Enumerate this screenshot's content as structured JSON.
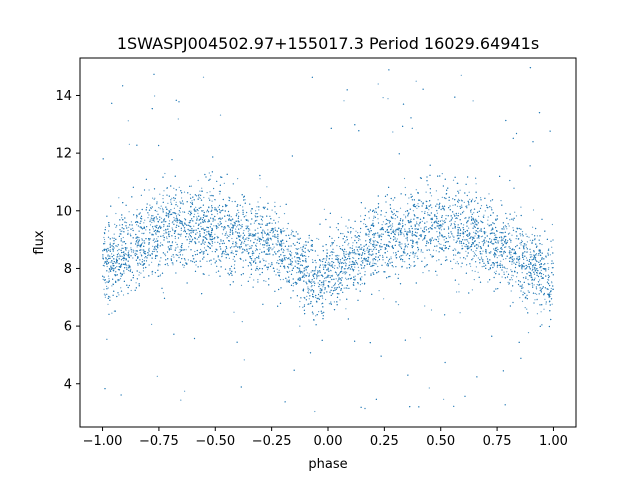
{
  "chart_data": {
    "type": "scatter",
    "title": "1SWASPJ004502.97+155017.3 Period 16029.64941s",
    "xlabel": "phase",
    "ylabel": "flux",
    "xlim": [
      -1.1,
      1.1
    ],
    "ylim": [
      2.5,
      15.3
    ],
    "x_ticks": [
      -1.0,
      -0.75,
      -0.5,
      -0.25,
      0.0,
      0.25,
      0.5,
      0.75,
      1.0
    ],
    "x_tick_labels": [
      "−1.00",
      "−0.75",
      "−0.50",
      "−0.25",
      "0.00",
      "0.25",
      "0.50",
      "0.75",
      "1.00"
    ],
    "y_ticks": [
      4,
      6,
      8,
      10,
      12,
      14
    ],
    "y_tick_labels": [
      "4",
      "6",
      "8",
      "10",
      "12",
      "14"
    ],
    "grid": false,
    "series": [
      {
        "color": "#1f77b4",
        "marker_size": 0.6,
        "x_range": [
          -1.0,
          1.0
        ],
        "envelope": {
          "phase": [
            -1.0,
            -0.75,
            -0.65,
            -0.5,
            -0.25,
            -0.15,
            -0.05,
            0.0,
            0.05,
            0.15,
            0.25,
            0.35,
            0.45,
            0.5,
            0.65,
            0.75,
            0.85,
            1.0
          ],
          "median_flux": [
            8.0,
            9.3,
            9.5,
            9.4,
            8.8,
            8.3,
            7.5,
            7.6,
            7.9,
            8.6,
            9.1,
            9.4,
            9.5,
            9.4,
            9.2,
            8.8,
            8.3,
            7.6
          ],
          "spread": [
            1.1,
            1.2,
            1.2,
            1.2,
            1.1,
            1.0,
            1.0,
            1.0,
            1.0,
            1.0,
            1.1,
            1.2,
            1.2,
            1.2,
            1.2,
            1.1,
            1.1,
            1.1
          ]
        },
        "outlier_flux_range": [
          3.0,
          15.0
        ]
      }
    ]
  }
}
